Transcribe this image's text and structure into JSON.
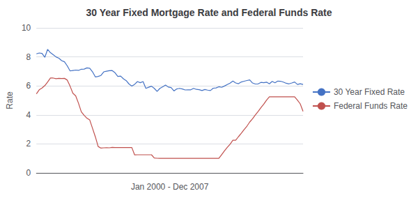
{
  "chart_data": {
    "type": "line",
    "title": "30 Year Fixed Mortgage Rate and Federal Funds Rate",
    "ylabel": "Rate",
    "xlabel": "Jan 2000 - Dec 2007",
    "categories": [
      null,
      null,
      null,
      null,
      null,
      null,
      null,
      null,
      null,
      null,
      null,
      null,
      null,
      null,
      null,
      null,
      null,
      null,
      null,
      null,
      null,
      null,
      null,
      null,
      null,
      null,
      null,
      null,
      null,
      null,
      null,
      null,
      null,
      null,
      null,
      null,
      null,
      null,
      null,
      null,
      null,
      null,
      null,
      null,
      null,
      null,
      null,
      null,
      null,
      null,
      null,
      null,
      null,
      null,
      null,
      null,
      null,
      null,
      null,
      null,
      null,
      null,
      null,
      null,
      null,
      null,
      null,
      null,
      null,
      null,
      null,
      null,
      null,
      null,
      null,
      null,
      null,
      null,
      null,
      null,
      null,
      null,
      null,
      null,
      null,
      null,
      null,
      null,
      null,
      null,
      null,
      null,
      null,
      null,
      null,
      null
    ],
    "series": [
      {
        "name": "30 Year Fixed Rate",
        "color": "#4472C4",
        "values": [
          8.21,
          8.27,
          8.24,
          7.97,
          8.52,
          8.29,
          8.15,
          8.0,
          7.91,
          7.74,
          7.66,
          7.38,
          7.03,
          7.06,
          7.09,
          7.07,
          7.15,
          7.16,
          7.24,
          7.22,
          6.97,
          6.62,
          6.65,
          6.72,
          6.97,
          7.01,
          7.05,
          7.06,
          6.91,
          6.65,
          6.68,
          6.49,
          6.36,
          6.13,
          5.99,
          6.11,
          6.3,
          6.22,
          6.3,
          5.83,
          5.91,
          5.98,
          5.83,
          5.62,
          5.83,
          5.94,
          6.06,
          5.92,
          5.88,
          5.65,
          5.79,
          5.83,
          5.79,
          5.72,
          5.73,
          5.73,
          5.83,
          5.76,
          5.74,
          5.68,
          5.75,
          5.71,
          5.68,
          5.84,
          5.86,
          5.94,
          5.9,
          5.99,
          6.09,
          6.19,
          6.33,
          6.2,
          6.15,
          6.27,
          6.32,
          6.37,
          6.41,
          6.2,
          6.13,
          6.14,
          6.24,
          6.22,
          6.26,
          6.14,
          6.31,
          6.21,
          6.33,
          6.32,
          6.26,
          6.18,
          6.14,
          6.2,
          6.27,
          6.1,
          6.15,
          6.1
        ]
      },
      {
        "name": "Federal Funds Rate",
        "color": "#C0504D",
        "values": [
          5.45,
          5.73,
          5.85,
          6.02,
          6.27,
          6.54,
          6.54,
          6.5,
          6.52,
          6.51,
          6.52,
          6.4,
          5.98,
          5.49,
          5.31,
          4.8,
          4.21,
          3.97,
          3.77,
          3.65,
          3.07,
          2.49,
          1.82,
          1.71,
          1.73,
          1.74,
          1.73,
          1.76,
          1.75,
          1.75,
          1.75,
          1.75,
          1.75,
          1.75,
          1.75,
          1.24,
          1.25,
          1.25,
          1.25,
          1.25,
          1.25,
          1.25,
          1.03,
          1.01,
          1.0,
          1.0,
          1.0,
          1.0,
          1.0,
          1.0,
          1.0,
          1.0,
          1.0,
          1.0,
          1.0,
          1.0,
          1.0,
          1.0,
          1.0,
          1.0,
          1.0,
          1.0,
          1.0,
          1.0,
          1.0,
          1.0,
          1.26,
          1.52,
          1.76,
          1.98,
          2.25,
          2.25,
          2.5,
          2.74,
          2.99,
          3.22,
          3.51,
          3.73,
          4.0,
          4.24,
          4.5,
          4.74,
          5.02,
          5.25,
          5.25,
          5.25,
          5.25,
          5.25,
          5.25,
          5.25,
          5.25,
          5.25,
          5.25,
          5.02,
          4.76,
          4.24
        ]
      }
    ],
    "ylim": [
      0,
      10
    ],
    "yticks": [
      0,
      2,
      4,
      6,
      8,
      10
    ],
    "grid": true,
    "legend": "right",
    "marker": "circle",
    "tick_labels": "y"
  }
}
